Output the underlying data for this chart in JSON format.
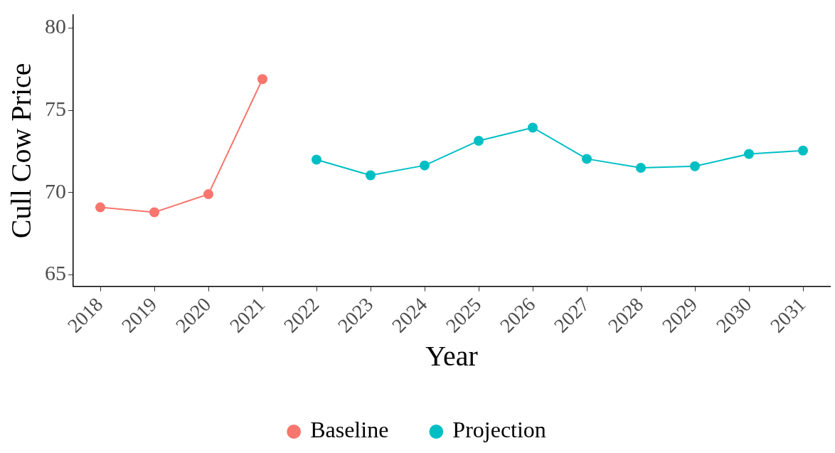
{
  "chart_data": {
    "type": "line",
    "xlabel": "Year",
    "ylabel": "Cull Cow Price",
    "categories": [
      "2018",
      "2019",
      "2020",
      "2021",
      "2022",
      "2023",
      "2024",
      "2025",
      "2026",
      "2027",
      "2028",
      "2029",
      "2030",
      "2031"
    ],
    "series": [
      {
        "name": "Baseline",
        "color": "#f8766d",
        "values": [
          69.1,
          68.8,
          69.9,
          76.9,
          null,
          null,
          null,
          null,
          null,
          null,
          null,
          null,
          null,
          null
        ]
      },
      {
        "name": "Projection",
        "color": "#00bfc4",
        "values": [
          null,
          null,
          null,
          null,
          72.0,
          71.05,
          71.65,
          73.15,
          73.95,
          72.05,
          71.5,
          71.6,
          72.35,
          72.55
        ]
      }
    ],
    "ylim": [
      64.3,
      80.8
    ],
    "yticks": [
      65,
      70,
      75,
      80
    ],
    "grid": false,
    "legend": "bottom",
    "marker": "circle",
    "line_style": "solid"
  }
}
